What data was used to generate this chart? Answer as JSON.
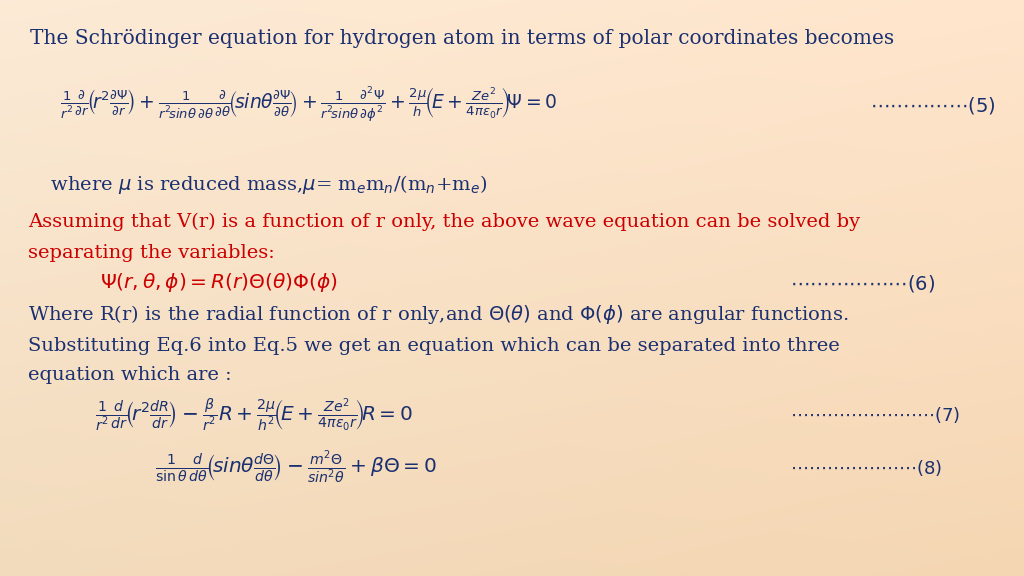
{
  "bg_color": "#fce8d0",
  "navy": "#1a3070",
  "red": "#cc0000",
  "title_text": "The Schrödinger equation for hydrogen atom in terms of polar coordinates becomes",
  "title_fontsize": 14.5,
  "body_fontsize": 14.0,
  "eq_fontsize": 13.5,
  "eq5_num": "\\u2026\\u2026\\u2026\\u2026.(5)",
  "eq6_num": "\\u2026\\u2026\\u2026\\u2026\\u2026..(6)",
  "eq7_num": "\\u2026\\u2026\\u2026\\u2026\\u2026\\u2026\\u2026.(7)",
  "eq8_num": "\\u2026\\u2026\\u2026\\u2026\\u2026\\u2026..(8)"
}
